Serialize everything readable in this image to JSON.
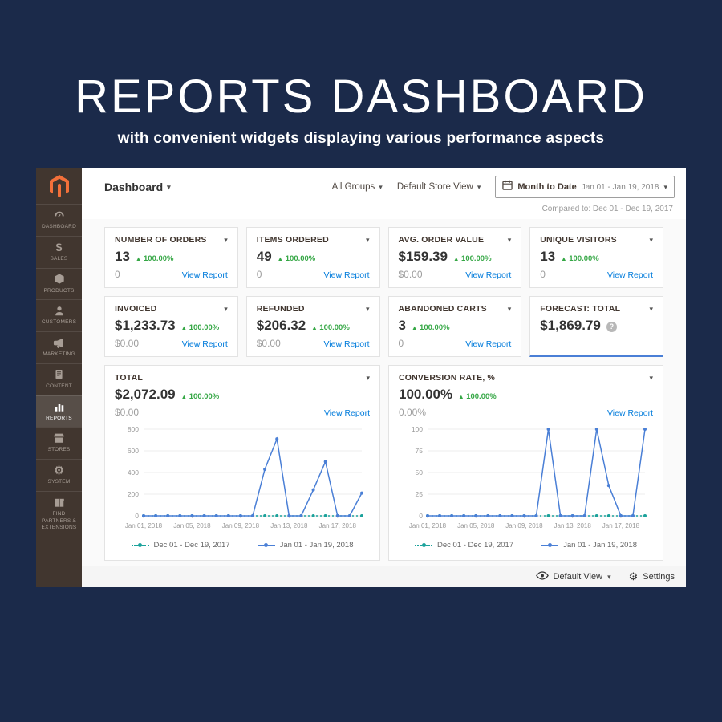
{
  "hero": {
    "title": "REPORTS DASHBOARD",
    "subtitle": "with convenient widgets displaying various performance aspects"
  },
  "icons": {
    "caret_down": "▾",
    "up_arrow": "▲",
    "gear": "⚙",
    "dollar": "$"
  },
  "colors": {
    "navy_bg": "#1b2a4a",
    "magento_orange": "#f3703a",
    "link_blue": "#007bdb",
    "positive_green": "#35a745",
    "accent_blue": "#4a7fd6",
    "series_teal": "#1ba29b"
  },
  "window": {
    "sidebar": {
      "items": [
        {
          "label": "DASHBOARD"
        },
        {
          "label": "SALES"
        },
        {
          "label": "PRODUCTS"
        },
        {
          "label": "CUSTOMERS"
        },
        {
          "label": "MARKETING"
        },
        {
          "label": "CONTENT"
        },
        {
          "label": "REPORTS",
          "active": true
        },
        {
          "label": "STORES"
        },
        {
          "label": "SYSTEM"
        },
        {
          "label": "FIND PARTNERS & EXTENSIONS"
        }
      ]
    },
    "header": {
      "page_title": "Dashboard",
      "scope_groups": "All Groups",
      "store_view": "Default Store View",
      "date_range_label": "Month to Date",
      "date_range_value": "Jan 01 - Jan 19, 2018",
      "compared_to": "Compared to: Dec 01 - Dec 19, 2017"
    },
    "cards": [
      {
        "title": "NUMBER OF ORDERS",
        "value": "13",
        "delta": "100.00%",
        "secondary": "0",
        "link": "View Report"
      },
      {
        "title": "ITEMS ORDERED",
        "value": "49",
        "delta": "100.00%",
        "secondary": "0",
        "link": "View Report"
      },
      {
        "title": "AVG. ORDER VALUE",
        "value": "$159.39",
        "delta": "100.00%",
        "secondary": "$0.00",
        "link": "View Report"
      },
      {
        "title": "UNIQUE VISITORS",
        "value": "13",
        "delta": "100.00%",
        "secondary": "0",
        "link": "View Report"
      },
      {
        "title": "INVOICED",
        "value": "$1,233.73",
        "delta": "100.00%",
        "secondary": "$0.00",
        "link": "View Report"
      },
      {
        "title": "REFUNDED",
        "value": "$206.32",
        "delta": "100.00%",
        "secondary": "$0.00",
        "link": "View Report"
      },
      {
        "title": "ABANDONED CARTS",
        "value": "3",
        "delta": "100.00%",
        "secondary": "0",
        "link": "View Report"
      },
      {
        "title": "FORECAST: TOTAL",
        "value": "$1,869.79",
        "help": "?"
      }
    ],
    "chart_cards": [
      {
        "title": "TOTAL",
        "value": "$2,072.09",
        "delta": "100.00%",
        "secondary": "$0.00",
        "link": "View Report"
      },
      {
        "title": "CONVERSION RATE, %",
        "value": "100.00%",
        "delta": "100.00%",
        "secondary": "0.00%",
        "link": "View Report"
      }
    ],
    "footer": {
      "view_label": "Default View",
      "settings_label": "Settings"
    }
  },
  "chart_data": [
    {
      "type": "line",
      "title": "Total",
      "ylim": [
        0,
        800
      ],
      "yticks": [
        0,
        200,
        400,
        600,
        800
      ],
      "grid": true,
      "legend_position": "bottom",
      "x": [
        "Jan 01, 2018",
        "Jan 02, 2018",
        "Jan 03, 2018",
        "Jan 04, 2018",
        "Jan 05, 2018",
        "Jan 06, 2018",
        "Jan 07, 2018",
        "Jan 08, 2018",
        "Jan 09, 2018",
        "Jan 10, 2018",
        "Jan 11, 2018",
        "Jan 12, 2018",
        "Jan 13, 2018",
        "Jan 14, 2018",
        "Jan 15, 2018",
        "Jan 16, 2018",
        "Jan 17, 2018",
        "Jan 18, 2018",
        "Jan 19, 2018"
      ],
      "x_tick_indices": [
        0,
        4,
        8,
        12,
        16
      ],
      "x_labels_visible": [
        "Jan 01, 2018",
        "Jan 05, 2018",
        "Jan 09, 2018",
        "Jan 13, 2018",
        "Jan 17, 2018"
      ],
      "series": [
        {
          "name": "Dec 01 - Dec 19, 2017",
          "color": "#1ba29b",
          "style": "dotted",
          "values": [
            0,
            0,
            0,
            0,
            0,
            0,
            0,
            0,
            0,
            0,
            0,
            0,
            0,
            0,
            0,
            0,
            0,
            0,
            0
          ]
        },
        {
          "name": "Jan 01 - Jan 19, 2018",
          "color": "#4a7fd6",
          "style": "solid",
          "values": [
            0,
            0,
            0,
            0,
            0,
            0,
            0,
            0,
            0,
            0,
            430,
            710,
            0,
            0,
            240,
            500,
            0,
            0,
            210
          ]
        }
      ]
    },
    {
      "type": "line",
      "title": "Conversion Rate, %",
      "ylim": [
        0,
        100
      ],
      "yticks": [
        0,
        25,
        50,
        75,
        100
      ],
      "grid": true,
      "legend_position": "bottom",
      "x": [
        "Jan 01, 2018",
        "Jan 02, 2018",
        "Jan 03, 2018",
        "Jan 04, 2018",
        "Jan 05, 2018",
        "Jan 06, 2018",
        "Jan 07, 2018",
        "Jan 08, 2018",
        "Jan 09, 2018",
        "Jan 10, 2018",
        "Jan 11, 2018",
        "Jan 12, 2018",
        "Jan 13, 2018",
        "Jan 14, 2018",
        "Jan 15, 2018",
        "Jan 16, 2018",
        "Jan 17, 2018",
        "Jan 18, 2018",
        "Jan 19, 2018"
      ],
      "x_tick_indices": [
        0,
        4,
        8,
        12,
        16
      ],
      "x_labels_visible": [
        "Jan 01, 2018",
        "Jan 05, 2018",
        "Jan 09, 2018",
        "Jan 13, 2018",
        "Jan 17, 2018"
      ],
      "series": [
        {
          "name": "Dec 01 - Dec 19, 2017",
          "color": "#1ba29b",
          "style": "dotted",
          "values": [
            0,
            0,
            0,
            0,
            0,
            0,
            0,
            0,
            0,
            0,
            0,
            0,
            0,
            0,
            0,
            0,
            0,
            0,
            0
          ]
        },
        {
          "name": "Jan 01 - Jan 19, 2018",
          "color": "#4a7fd6",
          "style": "solid",
          "values": [
            0,
            0,
            0,
            0,
            0,
            0,
            0,
            0,
            0,
            0,
            100,
            0,
            0,
            0,
            100,
            35,
            0,
            0,
            100
          ]
        }
      ]
    }
  ]
}
